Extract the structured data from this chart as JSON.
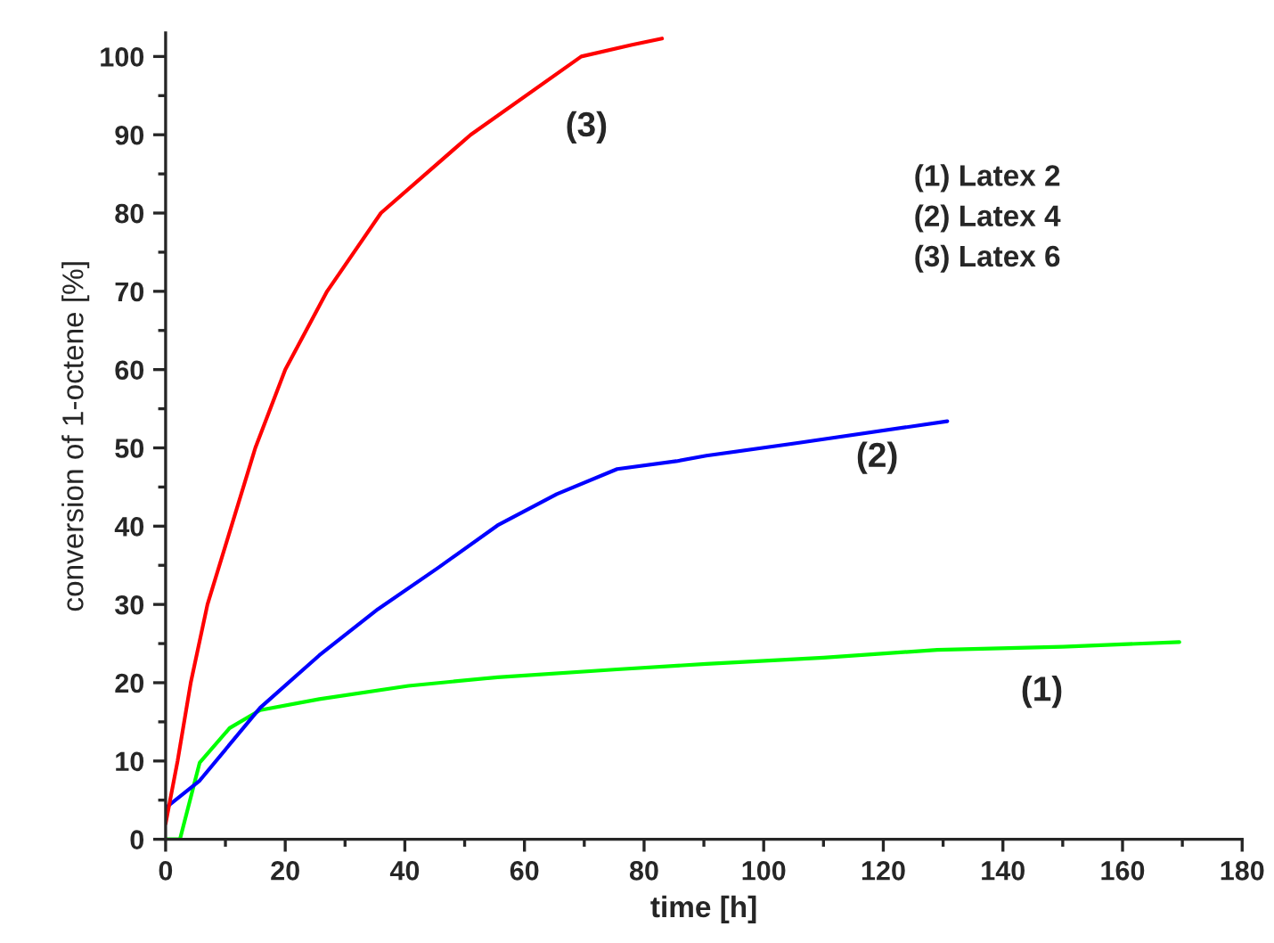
{
  "chart_data": {
    "type": "line",
    "xlabel": "time [h]",
    "ylabel": "conversion of 1-octene [%]",
    "xlim": [
      0,
      180
    ],
    "ylim": [
      0,
      103
    ],
    "xticks": [
      0,
      20,
      40,
      60,
      80,
      100,
      120,
      140,
      160,
      180
    ],
    "yticks": [
      0,
      10,
      20,
      30,
      40,
      50,
      60,
      70,
      80,
      90,
      100
    ],
    "grid": false,
    "legend": false,
    "series": [
      {
        "name": "(1)",
        "color": "#00ff00",
        "x": [
          0,
          2.4,
          5.7,
          10.7,
          15.8,
          25.7,
          40.6,
          55.5,
          75.5,
          90.4,
          110,
          129,
          150,
          169.5
        ],
        "values": [
          0,
          0,
          9.8,
          14.2,
          16.5,
          17.9,
          19.6,
          20.7,
          21.7,
          22.4,
          23.2,
          24.2,
          24.6,
          25.2
        ]
      },
      {
        "name": "(2)",
        "color": "#0000ff",
        "x": [
          0,
          5.7,
          15.8,
          25.7,
          35.5,
          45.6,
          55.5,
          65.4,
          75.5,
          85.4,
          90.4,
          105.4,
          130.7
        ],
        "values": [
          4,
          7.5,
          16.8,
          23.5,
          29.4,
          34.7,
          40.1,
          44.1,
          47.3,
          48.3,
          49,
          50.6,
          53.4
        ]
      },
      {
        "name": "(3)",
        "color": "#ff0000",
        "x": [
          0,
          2,
          4.2,
          7,
          11,
          15,
          20,
          27,
          36,
          51,
          69.5,
          78,
          83
        ],
        "values": [
          2,
          10,
          20,
          30,
          40,
          50,
          60,
          70,
          80,
          90,
          100,
          101.5,
          102.3
        ]
      }
    ],
    "annotations": [
      "(1) Latex 2",
      "(2) Latex 4",
      "(3) Latex 6"
    ]
  }
}
